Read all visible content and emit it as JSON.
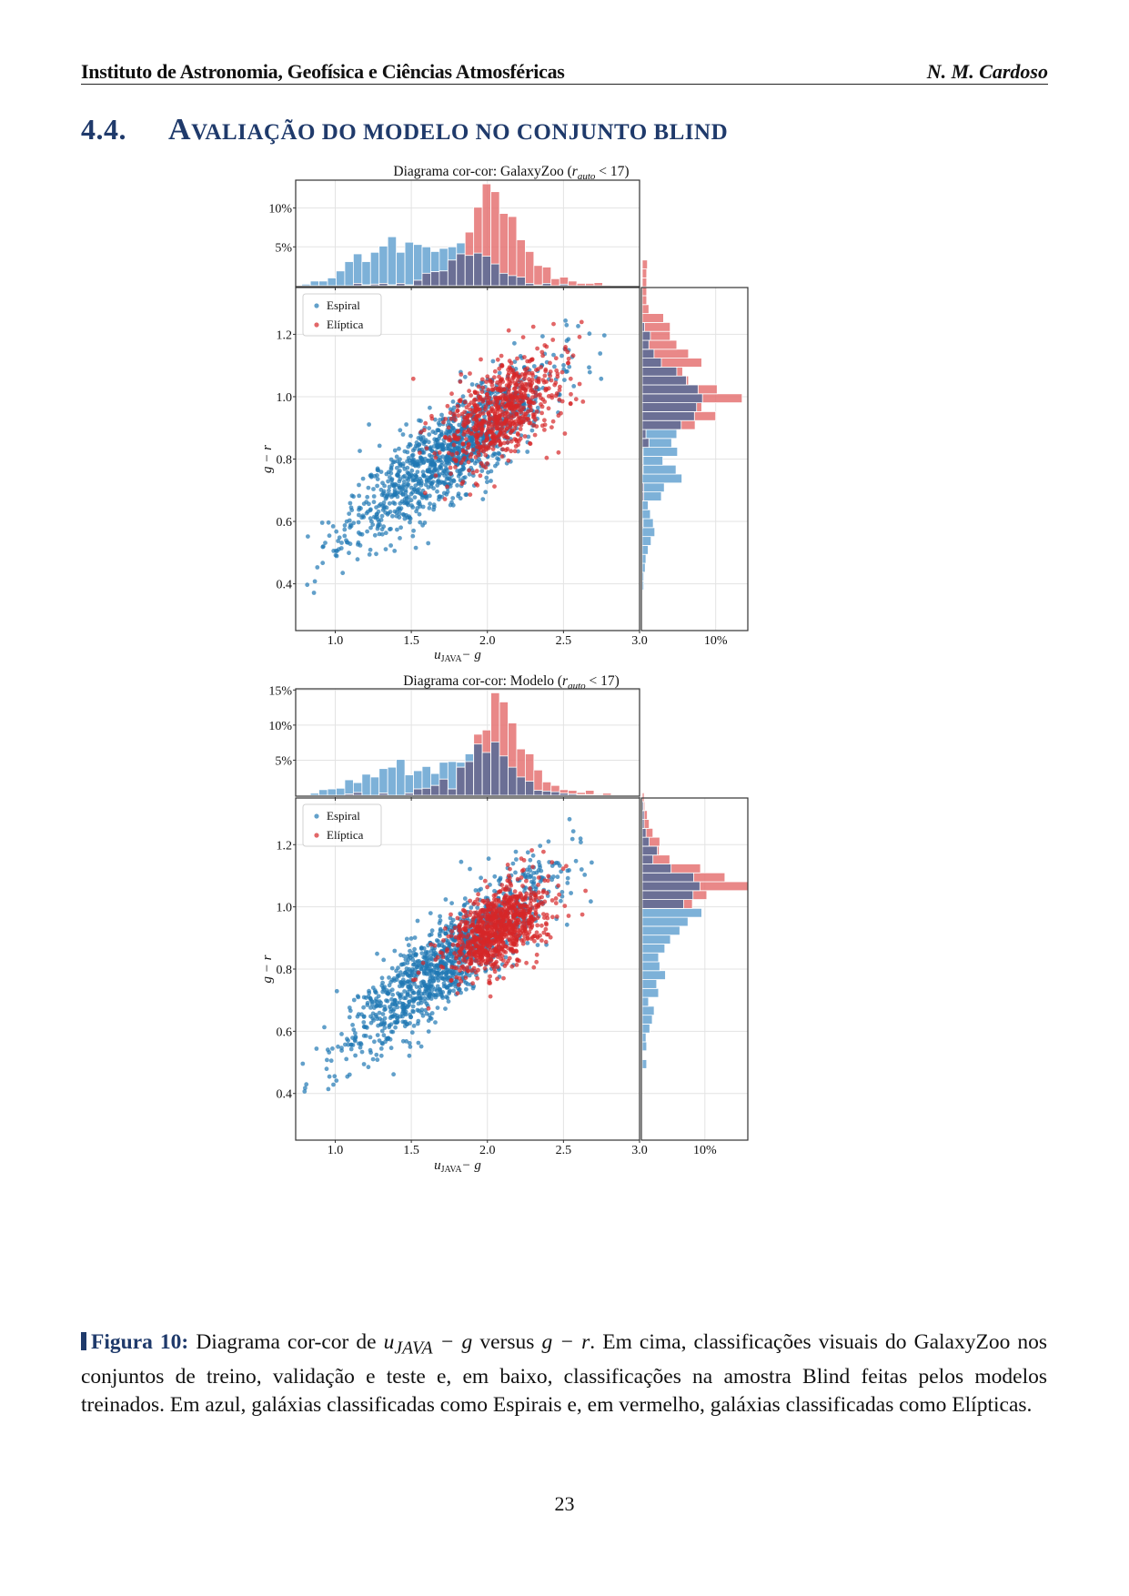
{
  "header": {
    "left": "Instituto de Astronomia, Geofísica e Ciências Atmosféricas",
    "right": "N. M. Cardoso"
  },
  "section": {
    "number": "4.4.",
    "first_letter": "A",
    "rest": "VALIAÇÃO DO MODELO NO CONJUNTO BLIND"
  },
  "figure": {
    "legend": {
      "spiral": "Espiral",
      "elliptical": "Elíptica"
    },
    "colors": {
      "spiral": "#1f77b4",
      "elliptical": "#d62728",
      "spiral_hist": "#6fa8d4",
      "elliptical_hist": "#e57373",
      "overlap_hist": "#6b6f95"
    },
    "xlabel_main": "u",
    "xlabel_sub": "JAVA",
    "xlabel_tail": "− g",
    "ylabel": "g − r"
  },
  "chart_data": [
    {
      "type": "scatter",
      "title": "Diagrama cor-cor: GalaxyZoo (r_auto < 17)",
      "title_main": "Diagrama cor-cor: GalaxyZoo (",
      "title_var": "r",
      "title_sub": "auto",
      "title_tail": " < 17)",
      "xlabel": "u_JAVA − g",
      "ylabel": "g − r",
      "xlim": [
        0.74,
        3.0
      ],
      "ylim": [
        0.25,
        1.35
      ],
      "xticks": [
        "1.0",
        "1.5",
        "2.0",
        "2.5",
        "3.0"
      ],
      "xtick_values": [
        1.0,
        1.5,
        2.0,
        2.5,
        3.0
      ],
      "yticks": [
        "0.4",
        "0.6",
        "0.8",
        "1.0",
        "1.2"
      ],
      "ytick_values": [
        0.4,
        0.6,
        0.8,
        1.0,
        1.2
      ],
      "grid": true,
      "legend_position": "top-left",
      "series": [
        {
          "name": "Espiral",
          "center": [
            1.75,
            0.82
          ],
          "slope": 0.36,
          "spread_x": 0.33,
          "spread_y": 0.075,
          "count": 1200
        },
        {
          "name": "Elíptica",
          "center": [
            2.1,
            0.95
          ],
          "slope": 0.25,
          "spread_x": 0.19,
          "spread_y": 0.075,
          "count": 700
        }
      ],
      "top_histogram": {
        "yticks": [
          "5%",
          "10%"
        ],
        "ytick_values": [
          5,
          10
        ],
        "ymax": 13.7,
        "bin_edges_start": 0.78,
        "bin_width": 0.0565,
        "Espiral": [
          0.2,
          0.6,
          0.6,
          1.0,
          1.9,
          3.1,
          4.1,
          3.1,
          4.3,
          5.1,
          6.3,
          4.3,
          5.6,
          5.3,
          5.0,
          4.4,
          4.8,
          5.0,
          5.5,
          3.9,
          4.2,
          3.8,
          2.8,
          1.6,
          1.3,
          1.1,
          0.3,
          0.1,
          0.3,
          0.0,
          0.2,
          0.0,
          0.0,
          0.0,
          0.0,
          0.0,
          0.0,
          0.0,
          0.0,
          0.0
        ],
        "Elíptica": [
          0.0,
          0.0,
          0.0,
          0.0,
          0.0,
          0.0,
          0.3,
          0.1,
          0.2,
          0.3,
          0.1,
          0.3,
          0.1,
          0.7,
          1.6,
          1.8,
          1.9,
          3.3,
          4.1,
          6.9,
          10.1,
          13.1,
          12.1,
          9.3,
          8.9,
          5.9,
          4.4,
          2.6,
          2.4,
          0.9,
          1.1,
          0.6,
          0.3,
          0.3,
          0.4,
          0.1,
          0.0,
          0.0,
          0.0,
          0.0
        ]
      },
      "right_histogram": {
        "xticks": [
          "10%"
        ],
        "xtick_values": [
          10
        ],
        "xmax": 14.5,
        "bin_edges_start": 0.38,
        "bin_width": 0.0286,
        "Espiral": [
          0.2,
          0.2,
          0.4,
          0.5,
          0.8,
          1.2,
          1.7,
          1.5,
          1.1,
          0.8,
          2.6,
          3.0,
          5.4,
          4.6,
          2.8,
          4.8,
          4.0,
          4.7,
          5.3,
          7.1,
          7.4,
          8.2,
          7.6,
          6.0,
          4.7,
          2.6,
          1.6,
          0.9,
          1.1,
          0.3,
          0.0,
          0.0,
          0.0,
          0.0,
          0.0,
          0.0,
          0.0,
          0.0
        ],
        "Elíptica": [
          0.0,
          0.0,
          0.0,
          0.0,
          0.0,
          0.0,
          0.0,
          0.1,
          0.0,
          0.0,
          0.2,
          0.2,
          0.0,
          0.1,
          0.1,
          0.1,
          0.9,
          0.5,
          7.2,
          10.0,
          8.1,
          13.6,
          10.2,
          6.3,
          5.5,
          8.1,
          6.3,
          4.7,
          3.8,
          3.8,
          2.9,
          0.9,
          0.6,
          0.6,
          0.6,
          0.6,
          0.7,
          0.0
        ]
      }
    },
    {
      "type": "scatter",
      "title": "Diagrama cor-cor: Modelo (r_auto < 17)",
      "title_main": "Diagrama cor-cor: Modelo (",
      "title_var": "r",
      "title_sub": "auto",
      "title_tail": " < 17)",
      "xlabel": "u_JAVA − g",
      "ylabel": "g − r",
      "xlim": [
        0.74,
        3.0
      ],
      "ylim": [
        0.25,
        1.35
      ],
      "xticks": [
        "1.0",
        "1.5",
        "2.0",
        "2.5",
        "3.0"
      ],
      "xtick_values": [
        1.0,
        1.5,
        2.0,
        2.5,
        3.0
      ],
      "yticks": [
        "0.4",
        "0.6",
        "0.8",
        "1.0",
        "1.2"
      ],
      "ytick_values": [
        0.4,
        0.6,
        0.8,
        1.0,
        1.2
      ],
      "grid": true,
      "legend_position": "top-left",
      "series": [
        {
          "name": "Espiral",
          "center": [
            1.72,
            0.82
          ],
          "slope": 0.38,
          "spread_x": 0.34,
          "spread_y": 0.07,
          "count": 1200
        },
        {
          "name": "Elíptica",
          "center": [
            2.07,
            0.93
          ],
          "slope": 0.22,
          "spread_x": 0.17,
          "spread_y": 0.065,
          "count": 900
        }
      ],
      "top_histogram": {
        "yticks": [
          "5%",
          "10%",
          "15%"
        ],
        "ytick_values": [
          5,
          10,
          15
        ],
        "ymax": 15.3,
        "bin_edges_start": 0.78,
        "bin_width": 0.0565,
        "Espiral": [
          0.1,
          0.3,
          0.8,
          0.9,
          1.0,
          2.2,
          1.8,
          3.0,
          2.6,
          3.8,
          4.0,
          5.1,
          2.9,
          3.5,
          4.1,
          3.1,
          4.7,
          4.8,
          4.7,
          5.9,
          7.3,
          6.1,
          7.6,
          5.6,
          4.0,
          2.6,
          2.0,
          0.7,
          0.6,
          0.5,
          0.3,
          0.2,
          0.1,
          0.1,
          0.1,
          0.0,
          0.0,
          0.0,
          0.0,
          0.0
        ],
        "Elíptica": [
          0.0,
          0.0,
          0.0,
          0.0,
          0.0,
          0.2,
          0.4,
          0.0,
          0.0,
          0.3,
          0.0,
          0.0,
          0.3,
          0.9,
          1.0,
          1.4,
          2.3,
          0.9,
          4.0,
          4.8,
          8.7,
          9.3,
          14.6,
          13.3,
          10.3,
          6.6,
          5.9,
          3.6,
          1.9,
          1.4,
          0.8,
          0.7,
          0.4,
          0.7,
          0.2,
          0.3,
          0.0,
          0.0,
          0.0,
          0.1
        ]
      },
      "right_histogram": {
        "xticks": [
          "10%"
        ],
        "xtick_values": [
          10
        ],
        "xmax": 17.0,
        "bin_edges_start": 0.28,
        "bin_width": 0.0286,
        "Espiral": [
          0.1,
          0.0,
          0.0,
          0.0,
          0.0,
          0.0,
          0.0,
          0.7,
          0.0,
          0.7,
          0.6,
          1.2,
          1.6,
          1.9,
          1.0,
          2.6,
          2.3,
          3.7,
          2.8,
          2.6,
          3.6,
          4.5,
          6.0,
          7.3,
          9.5,
          6.6,
          8.1,
          9.2,
          8.2,
          4.6,
          1.7,
          2.4,
          1.1,
          0.6,
          0.3,
          0.3,
          0.2,
          0.0,
          0.0
        ],
        "Elíptica": [
          0.0,
          0.0,
          0.0,
          0.0,
          0.0,
          0.0,
          0.0,
          0.0,
          0.0,
          0.0,
          0.0,
          0.0,
          0.0,
          0.0,
          0.0,
          0.0,
          0.0,
          0.0,
          0.0,
          0.0,
          0.0,
          0.0,
          0.0,
          0.0,
          0.0,
          8.0,
          10.3,
          16.9,
          13.2,
          9.3,
          4.4,
          2.7,
          2.8,
          1.7,
          1.1,
          0.8,
          0.4,
          0.3,
          0.1
        ]
      }
    }
  ],
  "caption": {
    "label": "Figura 10:",
    "text_1": " Diagrama cor-cor de ",
    "math_1": "u",
    "math_1_sub": "JAVA",
    "math_1_tail": " − g",
    "text_2": " versus ",
    "math_2": "g − r",
    "text_3": ".  Em cima, classificações visuais do GalaxyZoo nos conjuntos de treino, validação e teste e, em baixo, classificações na amostra Blind feitas pelos modelos treinados.  Em azul, galáxias classificadas como Espirais e, em vermelho, galáxias classificadas como Elípticas."
  },
  "page_number": "23"
}
